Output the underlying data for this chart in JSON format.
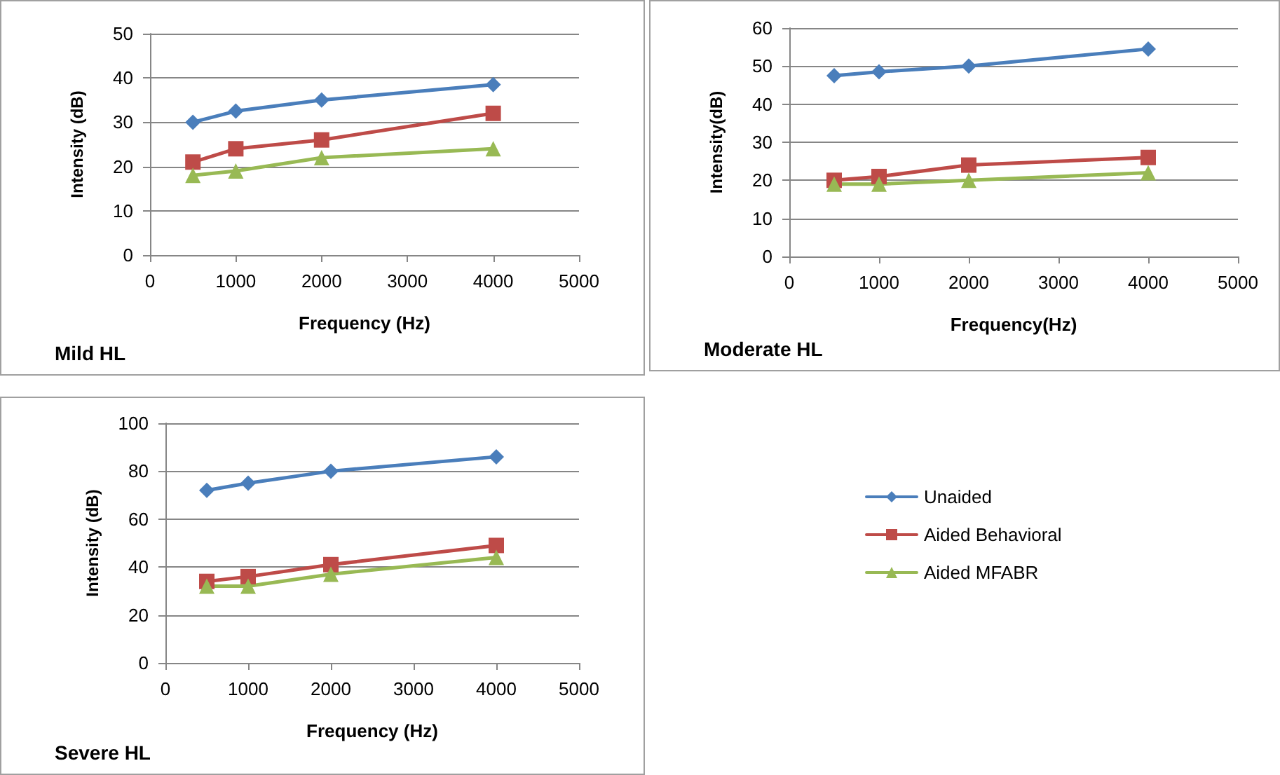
{
  "chart_data": [
    {
      "type": "line",
      "title": "Mild HL",
      "xlabel": "Frequency (Hz)",
      "ylabel": "Intensity (dB)",
      "x": [
        500,
        1000,
        2000,
        4000
      ],
      "xlim": [
        0,
        5000
      ],
      "xticks": [
        0,
        1000,
        2000,
        3000,
        4000,
        5000
      ],
      "ylim": [
        0,
        50
      ],
      "yticks": [
        0,
        10,
        20,
        30,
        40,
        50
      ],
      "grid": "y",
      "legend": false,
      "series": [
        {
          "color": "#4a7ebb",
          "marker": "diamond",
          "values": [
            30,
            32.5,
            35,
            38.5
          ]
        },
        {
          "color": "#be4b48",
          "marker": "square",
          "values": [
            21,
            24,
            26,
            32
          ]
        },
        {
          "color": "#98b954",
          "marker": "triangle",
          "values": [
            18,
            19,
            22,
            24
          ]
        }
      ]
    },
    {
      "type": "line",
      "title": "Moderate HL",
      "xlabel": "Frequency(Hz)",
      "ylabel": "Intensity(dB)",
      "x": [
        500,
        1000,
        2000,
        4000
      ],
      "xlim": [
        0,
        5000
      ],
      "xticks": [
        0,
        1000,
        2000,
        3000,
        4000,
        5000
      ],
      "ylim": [
        0,
        60
      ],
      "yticks": [
        0,
        10,
        20,
        30,
        40,
        50,
        60
      ],
      "grid": "y",
      "legend": false,
      "series": [
        {
          "color": "#4a7ebb",
          "marker": "diamond",
          "values": [
            47.5,
            48.5,
            50,
            54.5
          ]
        },
        {
          "color": "#be4b48",
          "marker": "square",
          "values": [
            20,
            21,
            24,
            26
          ]
        },
        {
          "color": "#98b954",
          "marker": "triangle",
          "values": [
            19,
            19,
            20,
            22
          ]
        }
      ]
    },
    {
      "type": "line",
      "title": "Severe HL",
      "xlabel": "Frequency (Hz)",
      "ylabel": "Intensity (dB)",
      "x": [
        500,
        1000,
        2000,
        4000
      ],
      "xlim": [
        0,
        5000
      ],
      "xticks": [
        0,
        1000,
        2000,
        3000,
        4000,
        5000
      ],
      "ylim": [
        0,
        100
      ],
      "yticks": [
        0,
        20,
        40,
        60,
        80,
        100
      ],
      "grid": "y",
      "legend": "right",
      "series": [
        {
          "name": "Unaided",
          "color": "#4a7ebb",
          "marker": "diamond",
          "values": [
            72,
            75,
            80,
            86
          ]
        },
        {
          "name": "Aided Behavioral",
          "color": "#be4b48",
          "marker": "square",
          "values": [
            34,
            36,
            41,
            49
          ]
        },
        {
          "name": "Aided MFABR",
          "color": "#98b954",
          "marker": "triangle",
          "values": [
            32,
            32,
            37,
            44
          ]
        }
      ]
    }
  ]
}
